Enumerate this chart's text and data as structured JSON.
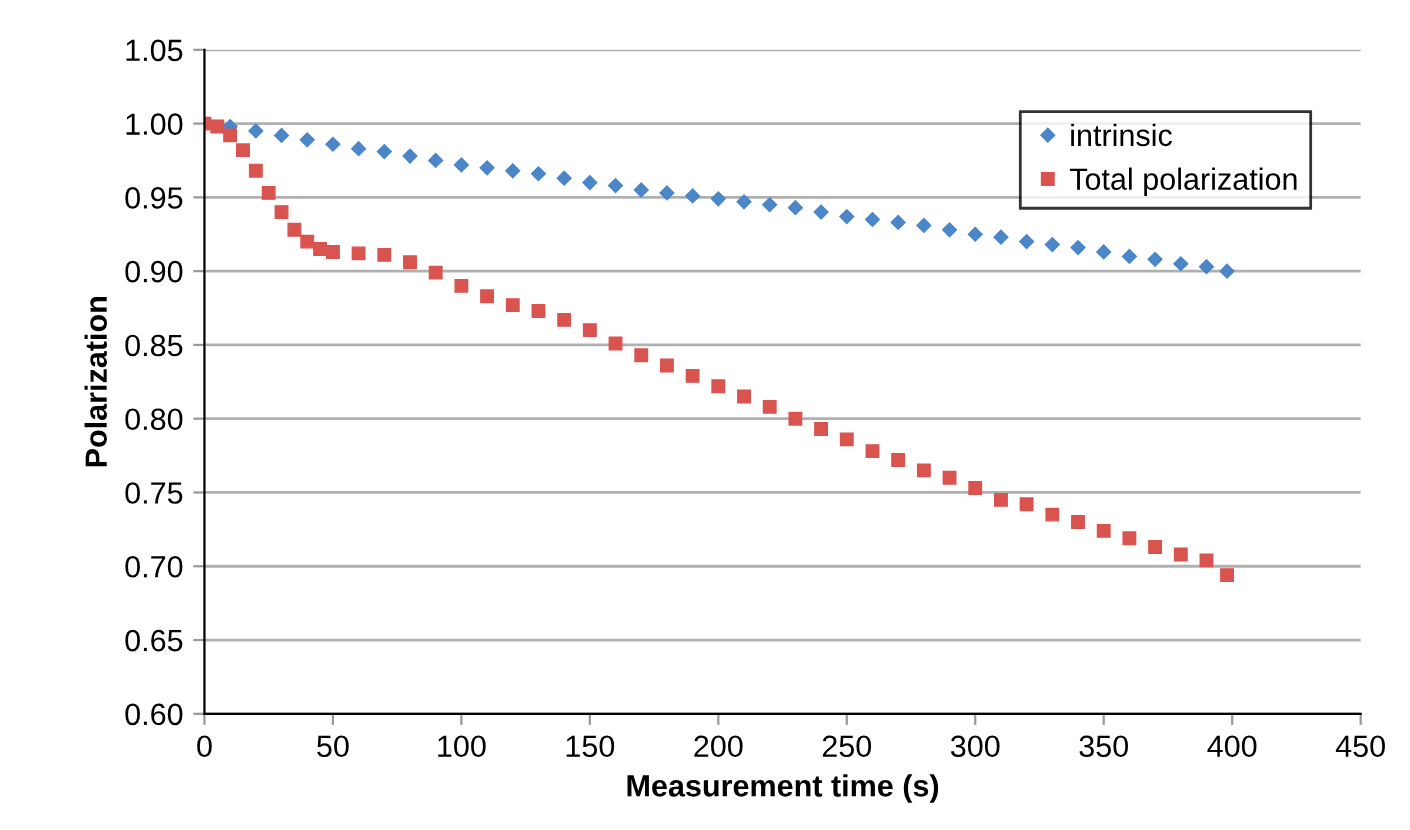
{
  "chart_data": {
    "type": "scatter",
    "xlabel": "Measurement time (s)",
    "ylabel": "Polarization",
    "xlim": [
      0,
      450
    ],
    "ylim": [
      0.6,
      1.05
    ],
    "xticks": [
      0,
      50,
      100,
      150,
      200,
      250,
      300,
      350,
      400,
      450
    ],
    "yticks": [
      {
        "value": 0.6,
        "label": "0.60"
      },
      {
        "value": 0.65,
        "label": "0.65"
      },
      {
        "value": 0.7,
        "label": "0.70"
      },
      {
        "value": 0.75,
        "label": "0.75"
      },
      {
        "value": 0.8,
        "label": "0.80"
      },
      {
        "value": 0.85,
        "label": "0.85"
      },
      {
        "value": 0.9,
        "label": "0.90"
      },
      {
        "value": 0.95,
        "label": "0.95"
      },
      {
        "value": 1.0,
        "label": "1.00"
      },
      {
        "value": 1.05,
        "label": "1.05"
      }
    ],
    "grid": "y",
    "legend": "top right",
    "series": [
      {
        "name": "intrinsic",
        "color": "#4a86c8",
        "marker": "diamond",
        "x": [
          10,
          20,
          30,
          40,
          50,
          60,
          70,
          80,
          90,
          100,
          110,
          120,
          130,
          140,
          150,
          160,
          170,
          180,
          190,
          200,
          210,
          220,
          230,
          240,
          250,
          260,
          270,
          280,
          290,
          300,
          310,
          320,
          330,
          340,
          350,
          360,
          370,
          380,
          390,
          398
        ],
        "values": [
          0.998,
          0.995,
          0.992,
          0.989,
          0.986,
          0.983,
          0.981,
          0.978,
          0.975,
          0.972,
          0.97,
          0.968,
          0.966,
          0.963,
          0.96,
          0.958,
          0.955,
          0.953,
          0.951,
          0.949,
          0.947,
          0.945,
          0.943,
          0.94,
          0.937,
          0.935,
          0.933,
          0.931,
          0.928,
          0.925,
          0.923,
          0.92,
          0.918,
          0.916,
          0.913,
          0.91,
          0.908,
          0.905,
          0.903,
          0.9
        ]
      },
      {
        "name": "Total polarization",
        "color": "#d9534f",
        "marker": "square",
        "x": [
          0,
          5,
          10,
          15,
          20,
          25,
          30,
          35,
          40,
          45,
          50,
          60,
          70,
          80,
          90,
          100,
          110,
          120,
          130,
          140,
          150,
          160,
          170,
          180,
          190,
          200,
          210,
          220,
          230,
          240,
          250,
          260,
          270,
          280,
          290,
          300,
          310,
          320,
          330,
          340,
          350,
          360,
          370,
          380,
          390,
          398
        ],
        "values": [
          1.0,
          0.998,
          0.992,
          0.982,
          0.968,
          0.953,
          0.94,
          0.928,
          0.92,
          0.915,
          0.913,
          0.912,
          0.911,
          0.906,
          0.899,
          0.89,
          0.883,
          0.877,
          0.873,
          0.867,
          0.86,
          0.851,
          0.843,
          0.836,
          0.829,
          0.822,
          0.815,
          0.808,
          0.8,
          0.793,
          0.786,
          0.778,
          0.772,
          0.765,
          0.76,
          0.753,
          0.745,
          0.742,
          0.735,
          0.73,
          0.724,
          0.719,
          0.713,
          0.708,
          0.704,
          0.694
        ]
      }
    ]
  }
}
